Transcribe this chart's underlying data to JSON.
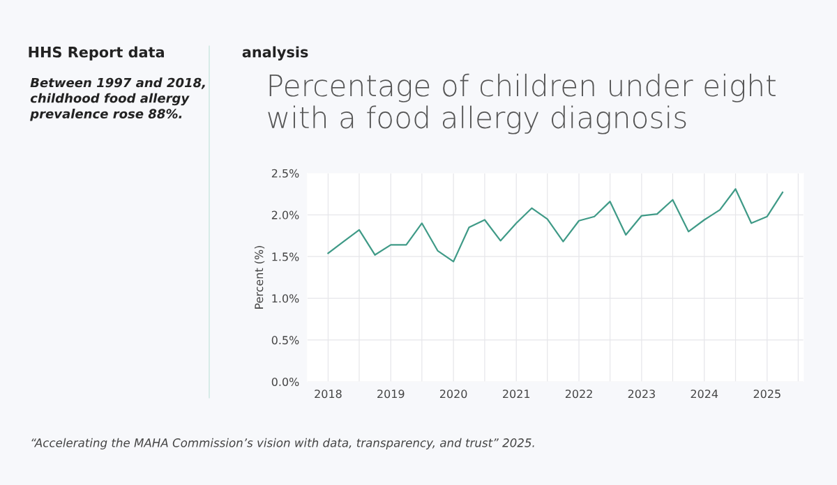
{
  "chart_data": {
    "type": "line",
    "title": "Percentage of children under eight\nwith a food allergy diagnosis",
    "ylabel": "Percent (%)",
    "x": [
      "2018-01",
      "2018-04",
      "2018-07",
      "2018-10",
      "2019-01",
      "2019-04",
      "2019-07",
      "2019-10",
      "2020-01",
      "2020-04",
      "2020-07",
      "2020-10",
      "2021-01",
      "2021-04",
      "2021-07",
      "2021-10",
      "2022-01",
      "2022-04",
      "2022-07",
      "2022-10",
      "2023-01",
      "2023-04",
      "2023-07",
      "2023-10",
      "2024-01",
      "2024-04",
      "2024-07",
      "2024-10",
      "2025-01",
      "2025-04"
    ],
    "series": [
      {
        "color": "#3f9a87",
        "values": [
          1.54,
          1.68,
          1.82,
          1.52,
          1.64,
          1.64,
          1.9,
          1.57,
          1.44,
          1.85,
          1.94,
          1.69,
          1.9,
          2.08,
          1.95,
          1.68,
          1.93,
          1.98,
          2.16,
          1.76,
          1.99,
          2.01,
          2.18,
          1.8,
          1.94,
          2.06,
          2.31,
          1.9,
          1.98,
          2.27
        ]
      }
    ],
    "xlim": [
      "2017-09",
      "2025-08"
    ],
    "xticks": [
      {
        "value": "2018-01",
        "label": "2018"
      },
      {
        "value": "2018-07",
        "label": null
      },
      {
        "value": "2019-01",
        "label": "2019"
      },
      {
        "value": "2019-07",
        "label": null
      },
      {
        "value": "2020-01",
        "label": "2020"
      },
      {
        "value": "2020-07",
        "label": null
      },
      {
        "value": "2021-01",
        "label": "2021"
      },
      {
        "value": "2021-07",
        "label": null
      },
      {
        "value": "2022-01",
        "label": "2022"
      },
      {
        "value": "2022-07",
        "label": null
      },
      {
        "value": "2023-01",
        "label": "2023"
      },
      {
        "value": "2023-07",
        "label": null
      },
      {
        "value": "2024-01",
        "label": "2024"
      },
      {
        "value": "2024-07",
        "label": null
      },
      {
        "value": "2025-01",
        "label": "2025"
      },
      {
        "value": "2025-07",
        "label": null
      }
    ],
    "ylim": [
      0,
      2.5
    ],
    "yticks": [
      {
        "value": 0,
        "label": "0.0%"
      },
      {
        "value": 0.5,
        "label": "0.5%"
      },
      {
        "value": 1.0,
        "label": "1.0%"
      },
      {
        "value": 1.5,
        "label": "1.5%"
      },
      {
        "value": 2.0,
        "label": "2.0%"
      },
      {
        "value": 2.5,
        "label": "2.5%"
      }
    ],
    "grid": true,
    "marker": "none",
    "line_style": "solid",
    "annotations": [
      "HHS Report data",
      "Between 1997 and 2018, childhood food allergy prevalence rose 88%.",
      "analysis",
      "“Accelerating the MAHA Commission’s vision with data, transparency, and trust” 2025."
    ]
  }
}
